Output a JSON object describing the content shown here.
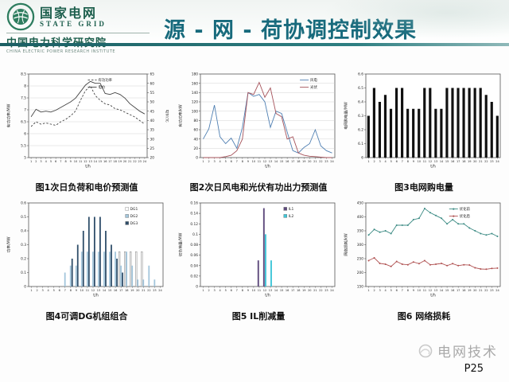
{
  "header": {
    "brand_cn": "国家电网",
    "brand_en": "STATE GRID",
    "institute_cn": "中国电力科学研究院",
    "institute_en": "CHINA ELECTRIC POWER RESEARCH INSTITUTE",
    "title": "源 - 网 - 荷协调控制效果",
    "title_color": "#176a7c",
    "bar_color": "#2e7f82"
  },
  "footer": {
    "journal": "电网技术",
    "page": "P25"
  },
  "x_hours": [
    1,
    2,
    3,
    4,
    5,
    6,
    7,
    8,
    9,
    10,
    11,
    12,
    13,
    14,
    15,
    16,
    17,
    18,
    19,
    20,
    21,
    22,
    23,
    24
  ],
  "chart_data": [
    {
      "caption": "图1次日负荷和电价预测值",
      "type": "line",
      "xlabel": "t/h",
      "ylabel": "有功功率/MW",
      "y2label": "电价/元",
      "ylim": [
        5,
        8.5
      ],
      "yticks": [
        5,
        5.5,
        6,
        6.5,
        7,
        7.5,
        8,
        8.5
      ],
      "y2lim": [
        20,
        65
      ],
      "y2ticks": [
        20,
        25,
        30,
        35,
        40,
        45,
        50,
        55,
        60,
        65
      ],
      "grid": true,
      "legend_x": 0.5,
      "series": [
        {
          "name": "有功功率",
          "axis": "left",
          "color": "#444444",
          "dash": "2.5,2",
          "values": [
            6.3,
            6.5,
            6.4,
            6.45,
            6.4,
            6.35,
            6.5,
            6.6,
            6.75,
            6.95,
            7.4,
            7.8,
            8.0,
            7.6,
            7.4,
            7.25,
            7.2,
            7.05,
            7.0,
            6.9,
            6.8,
            6.7,
            6.55,
            6.4
          ]
        },
        {
          "name": "电价",
          "axis": "right",
          "color": "#444444",
          "values": [
            42,
            46,
            44.5,
            45,
            44.5,
            45.5,
            47,
            48.5,
            50,
            52,
            55.5,
            59,
            61,
            60,
            60,
            54.5,
            54,
            55,
            54,
            52,
            49,
            47,
            45,
            43.5
          ]
        }
      ]
    },
    {
      "caption": "图2次日风电和光伏有功出力预测值",
      "type": "line",
      "xlabel": "t/h",
      "ylabel": "有功功率/kW",
      "ylim": [
        0,
        180
      ],
      "yticks": [
        0,
        20,
        40,
        60,
        80,
        100,
        120,
        140,
        160,
        180
      ],
      "grid": true,
      "legend_x": 0.74,
      "series": [
        {
          "name": "风电",
          "color": "#4f7fb2",
          "values": [
            40,
            62,
            113,
            45,
            30,
            42,
            20,
            65,
            140,
            132,
            136,
            120,
            65,
            100,
            95,
            55,
            15,
            10,
            22,
            30,
            60,
            25,
            15,
            10
          ]
        },
        {
          "name": "光伏",
          "color": "#a5525a",
          "values": [
            0,
            0,
            0,
            0,
            2,
            5,
            15,
            40,
            140,
            136,
            162,
            130,
            150,
            95,
            88,
            40,
            45,
            10,
            5,
            3,
            2,
            1,
            0,
            0
          ]
        }
      ]
    },
    {
      "caption": "图3电网购电量",
      "type": "bar",
      "xlabel": "t/h",
      "ylabel": "电网购电量/MW",
      "ylim": [
        6,
        6.6
      ],
      "yticks": [
        6,
        6.1,
        6.2,
        6.3,
        6.4,
        6.5,
        6.6
      ],
      "legend": false,
      "barw": 0.5,
      "series": [
        {
          "name": "购电量",
          "color": "#101010",
          "values": [
            6.3,
            6.5,
            6.4,
            6.45,
            6.35,
            6.5,
            6.5,
            6.35,
            6.35,
            6.35,
            6.5,
            6.5,
            6.35,
            6.35,
            6.5,
            6.5,
            6.5,
            6.5,
            6.5,
            6.5,
            6.5,
            6.45,
            6.4,
            6.3
          ]
        }
      ]
    },
    {
      "caption": "图4可调DG机组组合",
      "type": "bar",
      "xlabel": "t/h",
      "ylabel": "功率/MW",
      "ylim": [
        0,
        0.6
      ],
      "yticks": [
        0,
        0.1,
        0.2,
        0.3,
        0.4,
        0.5,
        0.6
      ],
      "barw": 0.85,
      "legend_x": 0.72,
      "series": [
        {
          "name": "DG1",
          "color": "#fafafa",
          "stroke": "#808080",
          "values": [
            0,
            0,
            0,
            0,
            0,
            0,
            0,
            0,
            0,
            0,
            0,
            0,
            0,
            0,
            0,
            0,
            0.25,
            0.25,
            0.25,
            0.25,
            0.25,
            0,
            0,
            0
          ]
        },
        {
          "name": "DG2",
          "color": "#a3c6dc",
          "values": [
            0,
            0,
            0,
            0,
            0,
            0,
            0.1,
            0.15,
            0.15,
            0.25,
            0.25,
            0.25,
            0.25,
            0.25,
            0.25,
            0.25,
            0.15,
            0.25,
            0.15,
            0.05,
            0.05,
            0.15,
            0.05,
            0
          ]
        },
        {
          "name": "DG3",
          "color": "#2f4e6a",
          "values": [
            0,
            0,
            0,
            0,
            0,
            0,
            0,
            0.2,
            0.3,
            0.4,
            0.5,
            0.5,
            0.5,
            0.4,
            0.3,
            0.2,
            0.1,
            0,
            0,
            0,
            0,
            0,
            0,
            0
          ]
        }
      ]
    },
    {
      "caption": "图5 IL削减量",
      "type": "bar",
      "xlabel": "t/h",
      "ylabel": "切负荷量/MW",
      "ylim": [
        0,
        0.16
      ],
      "yticks": [
        0,
        0.02,
        0.04,
        0.06,
        0.08,
        0.1,
        0.12,
        0.14,
        0.16
      ],
      "barw": 0.6,
      "legend_x": 0.62,
      "series": [
        {
          "name": "IL1",
          "color": "#5e4a7d",
          "values": [
            0,
            0,
            0,
            0,
            0,
            0,
            0,
            0,
            0,
            0,
            0.05,
            0.15,
            0,
            0,
            0,
            0,
            0,
            0,
            0,
            0,
            0,
            0,
            0,
            0
          ]
        },
        {
          "name": "IL2",
          "color": "#3fc6d8",
          "values": [
            0,
            0,
            0,
            0,
            0,
            0,
            0,
            0,
            0,
            0,
            0,
            0.1,
            0.05,
            0,
            0,
            0,
            0,
            0,
            0,
            0,
            0,
            0,
            0,
            0
          ]
        }
      ]
    },
    {
      "caption": "图6 网络损耗",
      "type": "line",
      "xlabel": "t/h",
      "ylabel": "网络损耗/kW",
      "ylim": [
        150,
        450
      ],
      "yticks": [
        150,
        200,
        250,
        300,
        350,
        400,
        450
      ],
      "markers": true,
      "legend_x": 0.62,
      "series": [
        {
          "name": "优化前",
          "color": "#3c8b84",
          "values": [
            335,
            355,
            345,
            350,
            340,
            370,
            370,
            370,
            390,
            395,
            430,
            415,
            405,
            395,
            375,
            390,
            375,
            375,
            360,
            350,
            340,
            335,
            340,
            330
          ]
        },
        {
          "name": "优化后",
          "color": "#b05252",
          "values": [
            243,
            253,
            233,
            230,
            222,
            240,
            230,
            228,
            238,
            232,
            243,
            228,
            230,
            233,
            225,
            232,
            225,
            228,
            227,
            217,
            213,
            212,
            215,
            216
          ]
        }
      ]
    }
  ]
}
